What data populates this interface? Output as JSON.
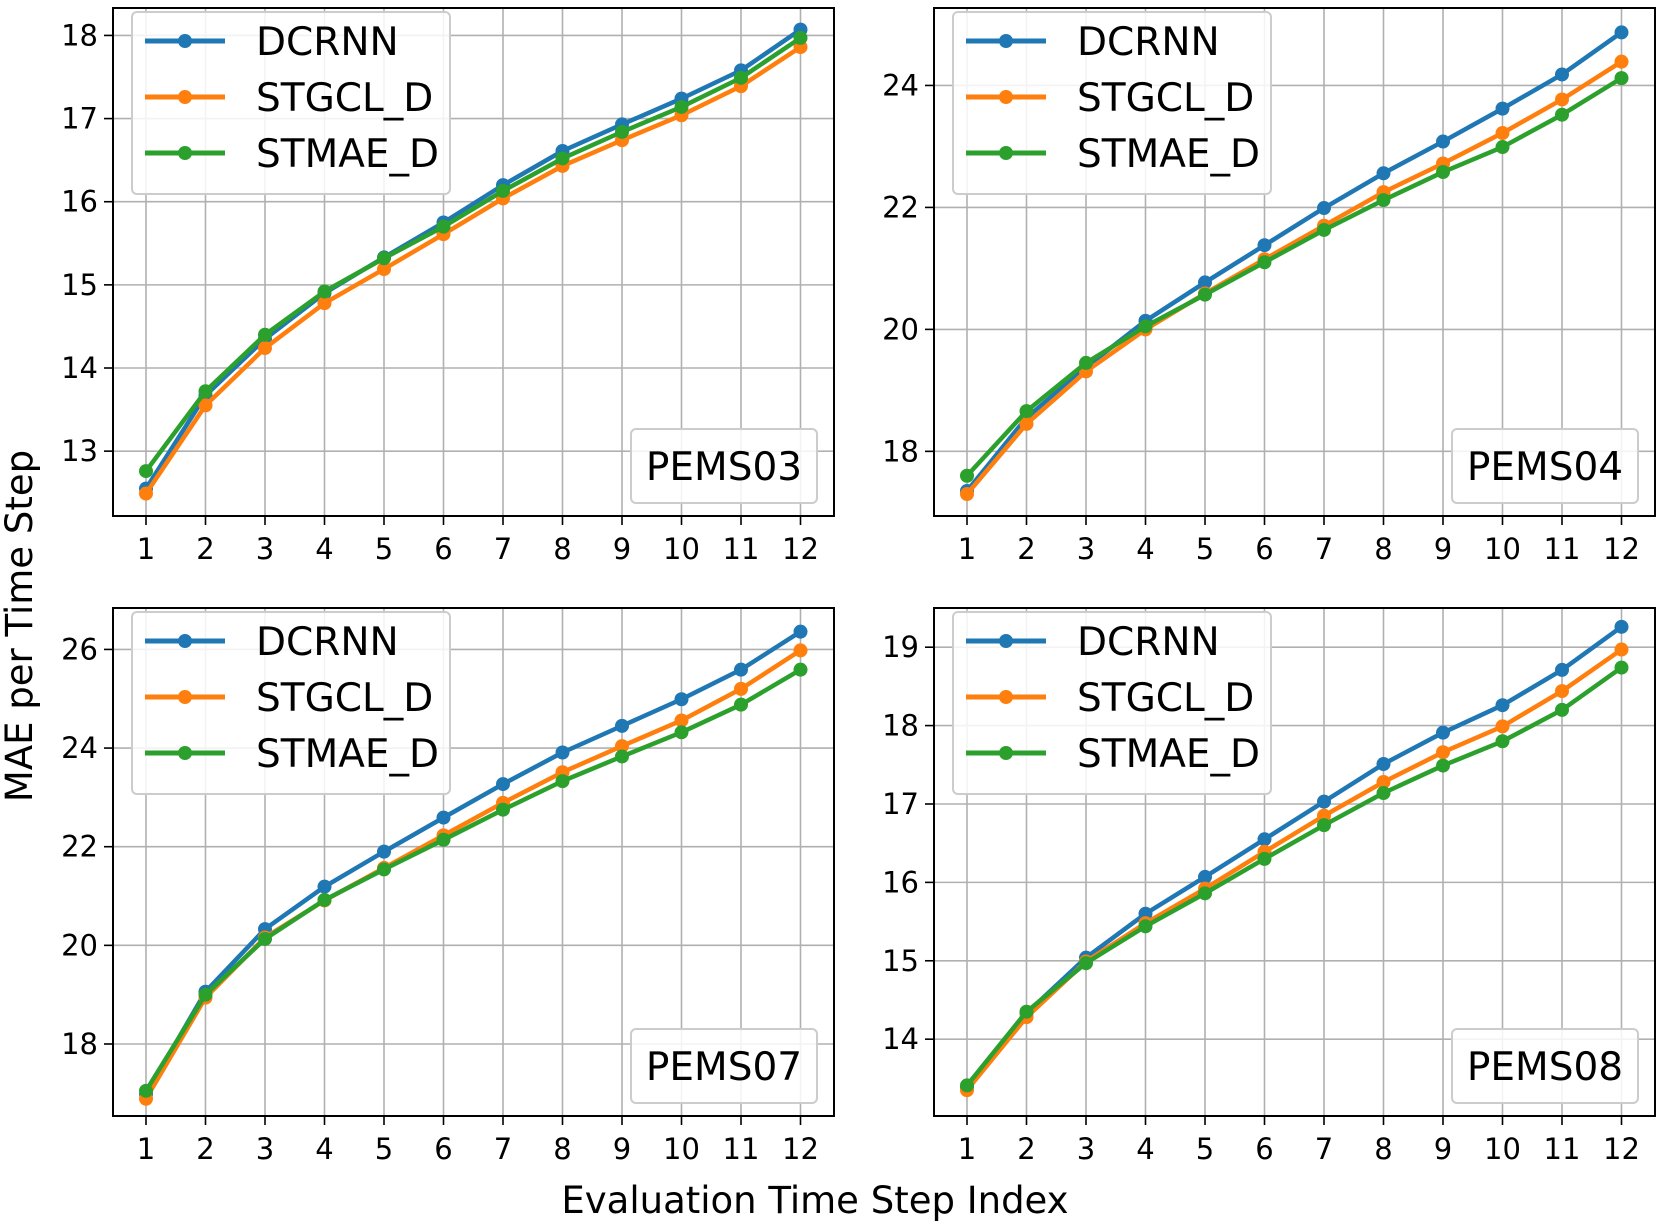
{
  "figure": {
    "xlabel": "Evaluation Time Step Index",
    "ylabel": "MAE per Time Step"
  },
  "chart_data": [
    {
      "type": "line",
      "label": "PEMS03",
      "x": [
        1,
        2,
        3,
        4,
        5,
        6,
        7,
        8,
        9,
        10,
        11,
        12
      ],
      "xticks": [
        "1",
        "2",
        "3",
        "4",
        "5",
        "6",
        "7",
        "8",
        "9",
        "10",
        "11",
        "12"
      ],
      "ylim": [
        12.22,
        18.33
      ],
      "yticks": [
        13,
        14,
        15,
        16,
        17,
        18
      ],
      "legend_position": "top-left",
      "label_position": "bottom-right",
      "series": [
        {
          "name": "DCRNN",
          "color": "#1f77b4",
          "values": [
            12.55,
            13.67,
            14.35,
            14.9,
            15.33,
            15.75,
            16.2,
            16.61,
            16.93,
            17.24,
            17.58,
            18.07
          ]
        },
        {
          "name": "STGCL_D",
          "color": "#ff7f0e",
          "values": [
            12.49,
            13.55,
            14.24,
            14.78,
            15.19,
            15.61,
            16.04,
            16.43,
            16.74,
            17.04,
            17.39,
            17.86
          ]
        },
        {
          "name": "STMAE_D",
          "color": "#2ca02c",
          "values": [
            12.76,
            13.72,
            14.4,
            14.92,
            15.32,
            15.7,
            16.13,
            16.52,
            16.84,
            17.14,
            17.49,
            17.97
          ]
        }
      ]
    },
    {
      "type": "line",
      "label": "PEMS04",
      "x": [
        1,
        2,
        3,
        4,
        5,
        6,
        7,
        8,
        9,
        10,
        11,
        12
      ],
      "xticks": [
        "1",
        "2",
        "3",
        "4",
        "5",
        "6",
        "7",
        "8",
        "9",
        "10",
        "11",
        "12"
      ],
      "ylim": [
        16.94,
        25.27
      ],
      "yticks": [
        18,
        20,
        22,
        24
      ],
      "legend_position": "top-left",
      "label_position": "bottom-right",
      "series": [
        {
          "name": "DCRNN",
          "color": "#1f77b4",
          "values": [
            17.35,
            18.55,
            19.38,
            20.14,
            20.77,
            21.38,
            21.99,
            22.56,
            23.08,
            23.62,
            24.18,
            24.87
          ]
        },
        {
          "name": "STGCL_D",
          "color": "#ff7f0e",
          "values": [
            17.3,
            18.45,
            19.31,
            20.0,
            20.59,
            21.15,
            21.7,
            22.25,
            22.72,
            23.22,
            23.77,
            24.39
          ]
        },
        {
          "name": "STMAE_D",
          "color": "#2ca02c",
          "values": [
            17.6,
            18.66,
            19.45,
            20.05,
            20.57,
            21.1,
            21.63,
            22.12,
            22.58,
            22.99,
            23.52,
            24.12
          ]
        }
      ]
    },
    {
      "type": "line",
      "label": "PEMS07",
      "x": [
        1,
        2,
        3,
        4,
        5,
        6,
        7,
        8,
        9,
        10,
        11,
        12
      ],
      "xticks": [
        "1",
        "2",
        "3",
        "4",
        "5",
        "6",
        "7",
        "8",
        "9",
        "10",
        "11",
        "12"
      ],
      "ylim": [
        16.54,
        26.84
      ],
      "yticks": [
        18,
        20,
        22,
        24,
        26
      ],
      "legend_position": "top-left",
      "label_position": "bottom-right",
      "series": [
        {
          "name": "DCRNN",
          "color": "#1f77b4",
          "values": [
            16.98,
            19.06,
            20.33,
            21.19,
            21.9,
            22.59,
            23.27,
            23.91,
            24.45,
            24.99,
            25.59,
            26.36
          ]
        },
        {
          "name": "STGCL_D",
          "color": "#ff7f0e",
          "values": [
            16.89,
            18.94,
            20.16,
            20.91,
            21.57,
            22.23,
            22.89,
            23.51,
            24.04,
            24.56,
            25.2,
            25.98
          ]
        },
        {
          "name": "STMAE_D",
          "color": "#2ca02c",
          "values": [
            17.05,
            19.0,
            20.13,
            20.92,
            21.54,
            22.14,
            22.75,
            23.33,
            23.83,
            24.32,
            24.88,
            25.59
          ]
        }
      ]
    },
    {
      "type": "line",
      "label": "PEMS08",
      "x": [
        1,
        2,
        3,
        4,
        5,
        6,
        7,
        8,
        9,
        10,
        11,
        12
      ],
      "xticks": [
        "1",
        "2",
        "3",
        "4",
        "5",
        "6",
        "7",
        "8",
        "9",
        "10",
        "11",
        "12"
      ],
      "ylim": [
        13.02,
        19.5
      ],
      "yticks": [
        14,
        15,
        16,
        17,
        18,
        19
      ],
      "legend_position": "top-left",
      "label_position": "bottom-right",
      "series": [
        {
          "name": "DCRNN",
          "color": "#1f77b4",
          "values": [
            13.39,
            14.33,
            15.04,
            15.6,
            16.07,
            16.55,
            17.03,
            17.51,
            17.91,
            18.26,
            18.71,
            19.26
          ]
        },
        {
          "name": "STGCL_D",
          "color": "#ff7f0e",
          "values": [
            13.35,
            14.28,
            14.99,
            15.48,
            15.92,
            16.39,
            16.85,
            17.28,
            17.66,
            17.99,
            18.44,
            18.97
          ]
        },
        {
          "name": "STMAE_D",
          "color": "#2ca02c",
          "values": [
            13.41,
            14.35,
            14.97,
            15.44,
            15.86,
            16.3,
            16.73,
            17.14,
            17.49,
            17.8,
            18.2,
            18.74
          ]
        }
      ]
    }
  ]
}
